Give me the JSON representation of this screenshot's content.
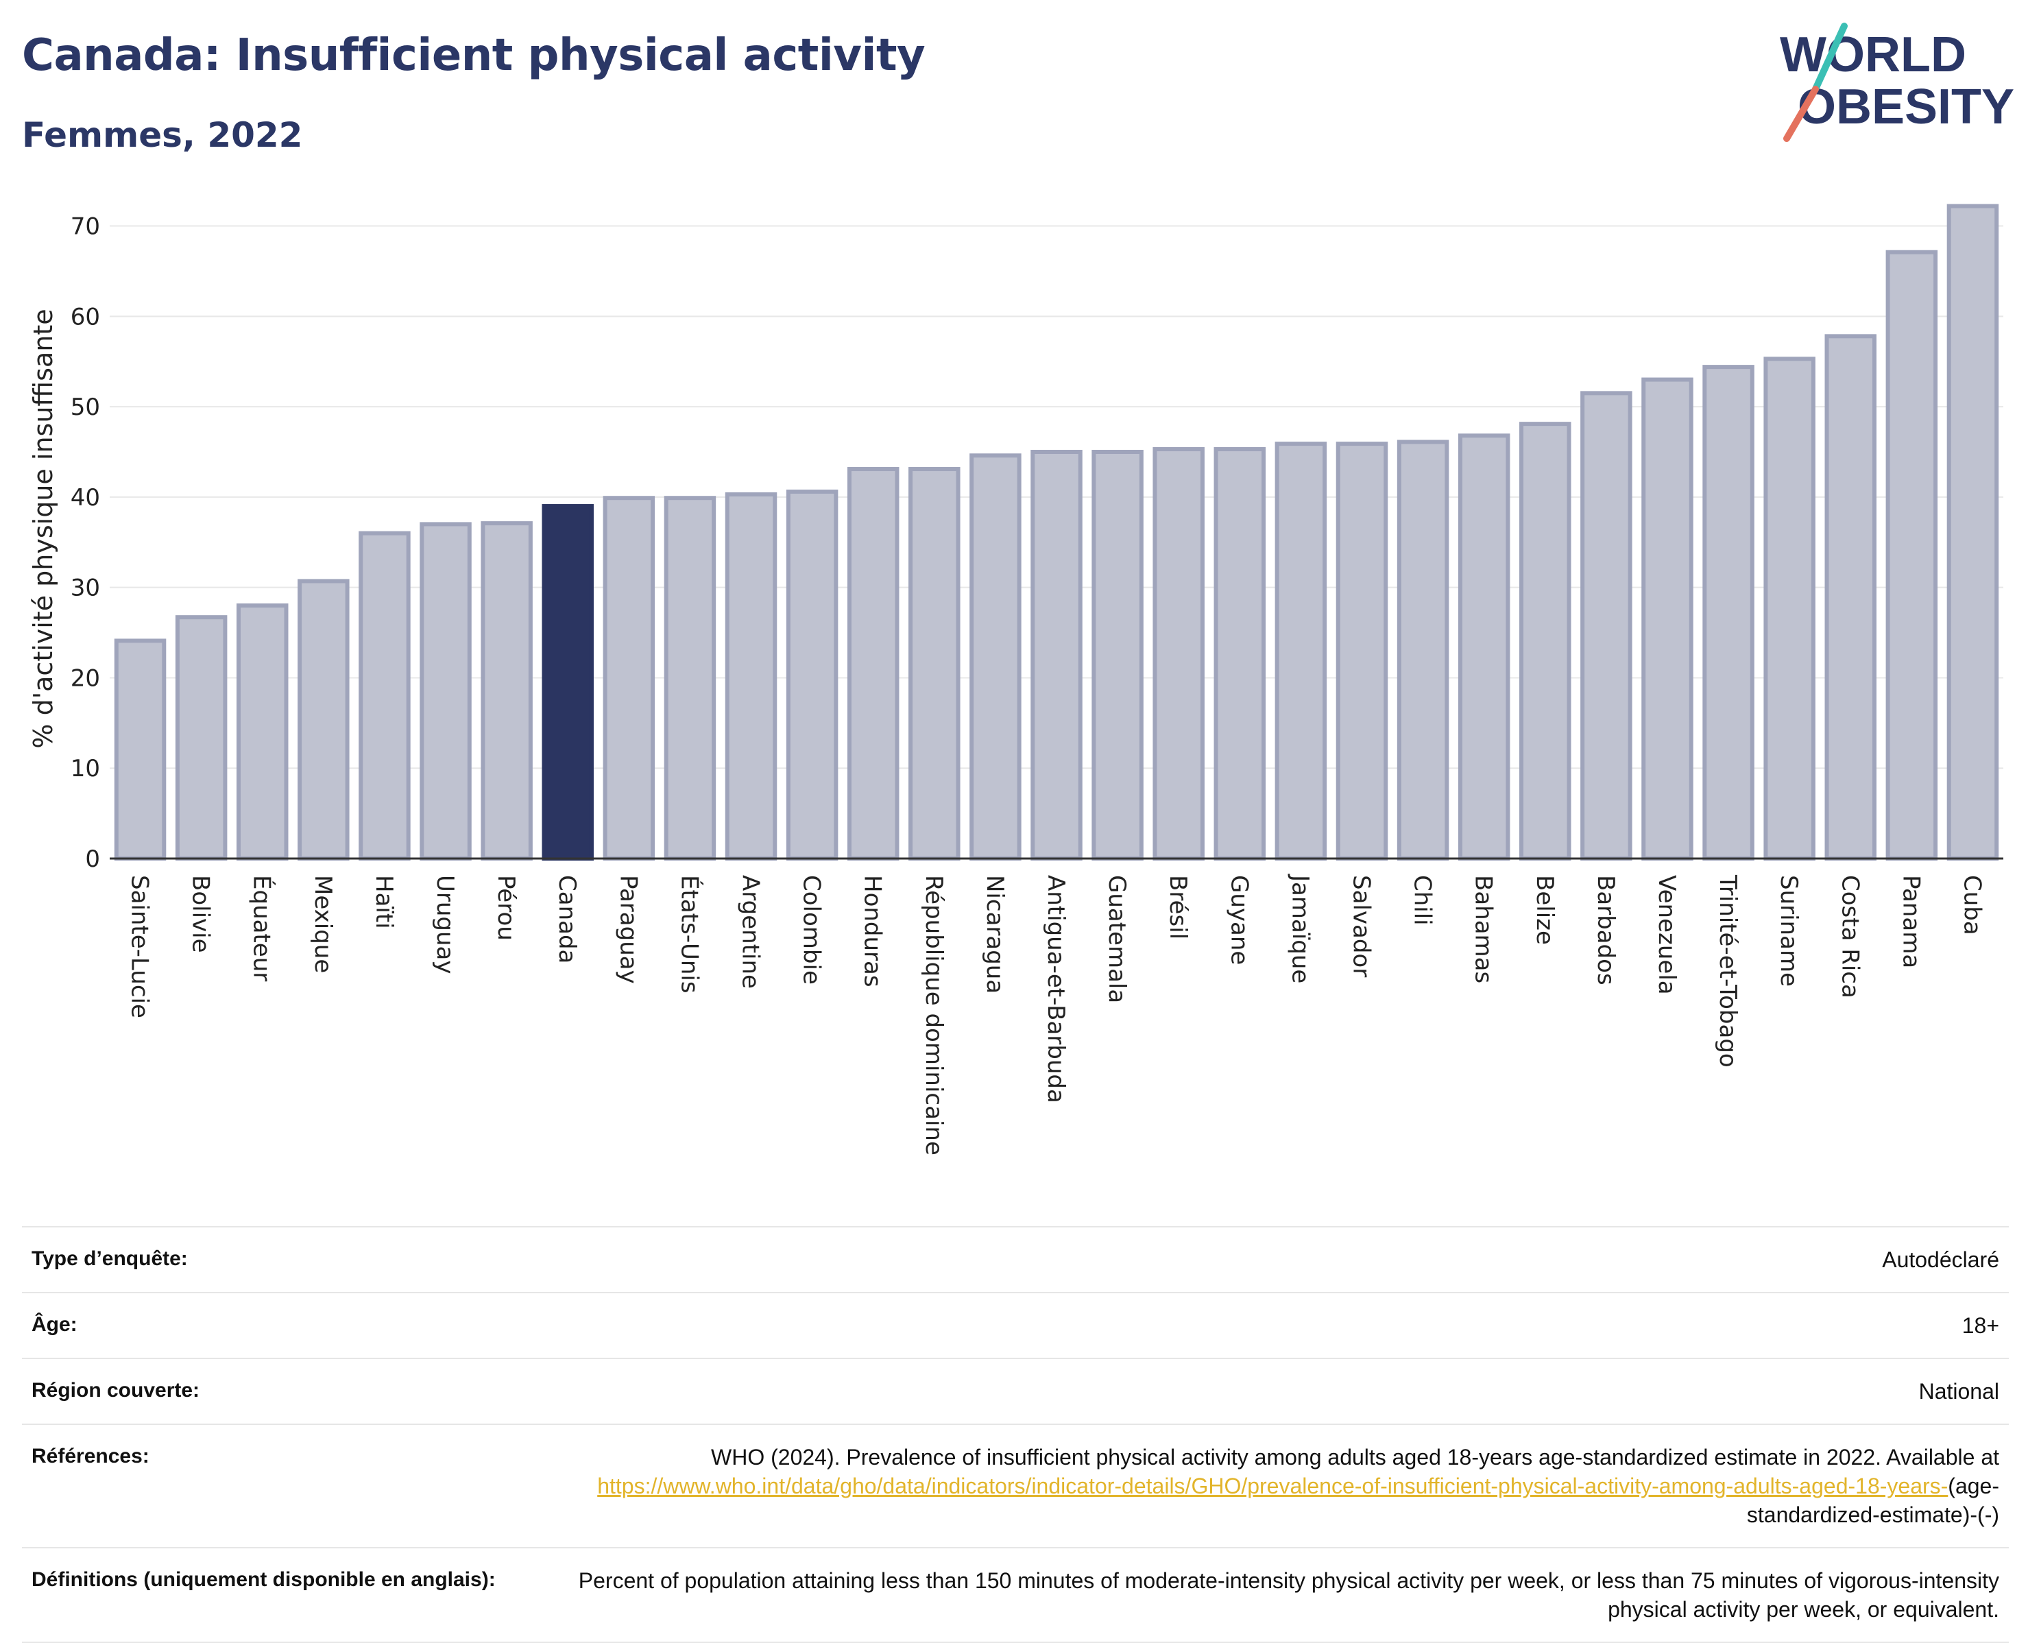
{
  "header": {
    "title": "Canada: Insufficient physical activity",
    "subtitle": "Femmes, 2022"
  },
  "logo": {
    "line1": "WORLD",
    "line2": "OBESITY",
    "accent_teal": "#3bbfb4",
    "accent_coral": "#e4725e",
    "text_color": "#2b3766"
  },
  "chart_data": {
    "type": "bar",
    "title": "",
    "xlabel": "",
    "ylabel": "% d'activité physique insuffisante",
    "ylim": [
      0,
      73
    ],
    "yticks": [
      0,
      10,
      20,
      30,
      40,
      50,
      60,
      70
    ],
    "grid": true,
    "highlight": "Canada",
    "colors": {
      "bar": "#bfc2d0",
      "bar_edge": "#9fa4bb",
      "highlight": "#2b3561"
    },
    "categories": [
      "Sainte-Lucie",
      "Bolivie",
      "Équateur",
      "Mexique",
      "Haïti",
      "Uruguay",
      "Pérou",
      "Canada",
      "Paraguay",
      "États-Unis",
      "Argentine",
      "Colombie",
      "Honduras",
      "République dominicaine",
      "Nicaragua",
      "Antigua-et-Barbuda",
      "Guatemala",
      "Brésil",
      "Guyane",
      "Jamaïque",
      "Salvador",
      "Chili",
      "Bahamas",
      "Belize",
      "Barbados",
      "Venezuela",
      "Trinité-et-Tobago",
      "Suriname",
      "Costa Rica",
      "Panama",
      "Cuba"
    ],
    "values": [
      24.1,
      26.7,
      28.0,
      30.7,
      36.0,
      37.0,
      37.1,
      39.0,
      39.9,
      39.9,
      40.3,
      40.6,
      43.1,
      43.1,
      44.6,
      45.0,
      45.0,
      45.3,
      45.3,
      45.9,
      45.9,
      46.1,
      46.8,
      48.1,
      51.5,
      53.0,
      54.4,
      55.3,
      57.8,
      67.1,
      72.2
    ]
  },
  "meta": {
    "survey_label": "Type d’enquête:",
    "survey_value": "Autodéclaré",
    "age_label": "Âge:",
    "age_value": "18+",
    "region_label": "Région couverte:",
    "region_value": "National",
    "refs_label": "Références:",
    "refs_text": "WHO (2024). Prevalence of insufficient physical activity among adults aged 18-years age-standardized estimate in 2022. Available at ",
    "refs_link": "https://www.who.int/data/gho/data/indicators/indicator-details/GHO/prevalence-of-insufficient-physical-activity-among-adults-aged-18-years-",
    "refs_suffix": "(age-standardized-estimate)-(-)",
    "defs_label": "Définitions (uniquement disponible en anglais):",
    "defs_value": "Percent of population attaining less than 150 minutes of moderate-intensity physical activity per week, or less than 75 minutes of vigorous-intensity physical activity per week, or equivalent."
  }
}
